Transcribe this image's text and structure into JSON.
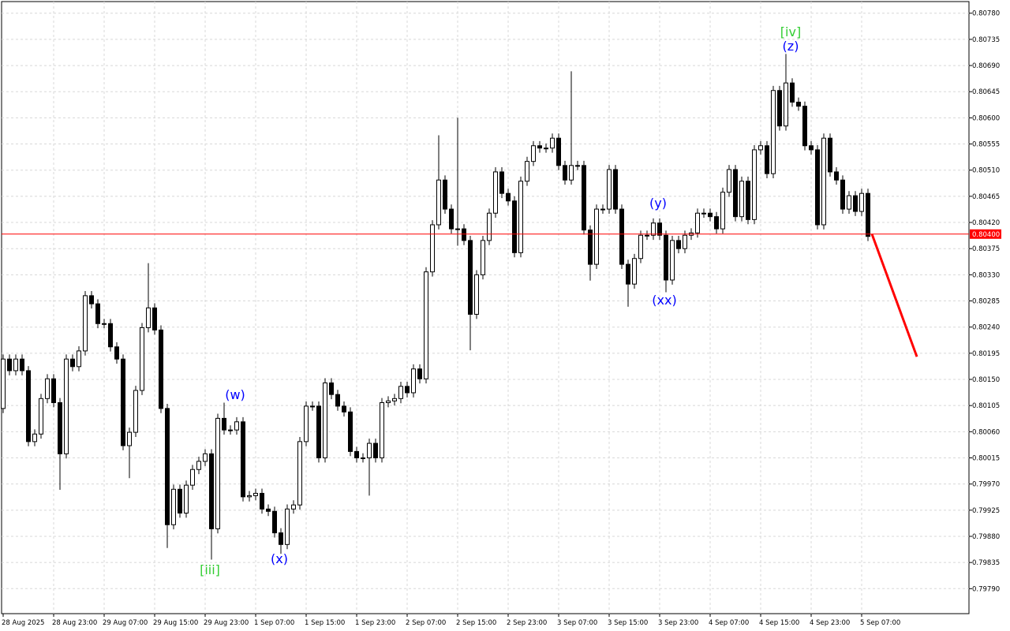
{
  "chart_data": {
    "type": "candlestick",
    "categories": [
      "28 Aug 2025",
      null,
      null,
      null,
      null,
      null,
      null,
      null,
      "28 Aug 23:00",
      null,
      null,
      null,
      null,
      null,
      null,
      null,
      "29 Aug 07:00",
      null,
      null,
      null,
      null,
      null,
      null,
      null,
      "29 Aug 15:00",
      null,
      null,
      null,
      null,
      null,
      null,
      null,
      "29 Aug 23:00",
      null,
      null,
      null,
      null,
      null,
      null,
      null,
      "1 Sep 07:00",
      null,
      null,
      null,
      null,
      null,
      null,
      null,
      "1 Sep 15:00",
      null,
      null,
      null,
      null,
      null,
      null,
      null,
      "1 Sep 23:00",
      null,
      null,
      null,
      null,
      null,
      null,
      null,
      "2 Sep 07:00",
      null,
      null,
      null,
      null,
      null,
      null,
      null,
      "2 Sep 15:00",
      null,
      null,
      null,
      null,
      null,
      null,
      null,
      "2 Sep 23:00",
      null,
      null,
      null,
      null,
      null,
      null,
      null,
      "3 Sep 07:00",
      null,
      null,
      null,
      null,
      null,
      null,
      null,
      "3 Sep 15:00",
      null,
      null,
      null,
      null,
      null,
      null,
      null,
      "3 Sep 23:00",
      null,
      null,
      null,
      null,
      null,
      null,
      null,
      "4 Sep 07:00",
      null,
      null,
      null,
      null,
      null,
      null,
      null,
      "4 Sep 15:00",
      null,
      null,
      null,
      null,
      null,
      null,
      null,
      "4 Sep 23:00",
      null,
      null,
      null,
      null,
      null,
      null,
      null,
      "5 Sep 07:00",
      null
    ],
    "open": [
      0.801,
      0.80185,
      0.80165,
      0.80185,
      0.80165,
      0.80043,
      0.80056,
      0.80117,
      0.80151,
      0.8011,
      0.80022,
      0.80185,
      0.80172,
      0.80199,
      0.80294,
      0.8028,
      0.80246,
      0.80246,
      0.80206,
      0.80185,
      0.80036,
      0.80059,
      0.80131,
      0.80239,
      0.80273,
      0.80235,
      0.801,
      0.799,
      0.79961,
      0.7992,
      0.79968,
      0.79995,
      0.80009,
      0.80022,
      0.79893,
      0.80083,
      0.80063,
      0.80063,
      0.80077,
      0.79948,
      0.7995,
      0.79954,
      0.79927,
      0.79923,
      0.79886,
      0.79866,
      0.79927,
      0.79934,
      0.80043,
      0.80104,
      0.80104,
      0.80015,
      0.80144,
      0.80124,
      0.80104,
      0.80094,
      0.80026,
      0.80015,
      0.80015,
      0.8004,
      0.80015,
      0.8011,
      0.80113,
      0.80117,
      0.80138,
      0.80127,
      0.80168,
      0.80151,
      0.80335,
      0.80416,
      0.80493,
      0.80443,
      0.80409,
      0.80409,
      0.80389,
      0.80262,
      0.8033,
      0.80389,
      0.80436,
      0.80507,
      0.8047,
      0.80457,
      0.80368,
      0.80491,
      0.80525,
      0.80552,
      0.80548,
      0.80548,
      0.80565,
      0.80518,
      0.80493,
      0.80518,
      0.80518,
      0.80407,
      0.80348,
      0.80443,
      0.80443,
      0.80511,
      0.80443,
      0.80348,
      0.80314,
      0.80358,
      0.80398,
      0.80398,
      0.80419,
      0.80398,
      0.80321,
      0.80389,
      0.80375,
      0.80398,
      0.80402,
      0.80436,
      0.80436,
      0.8043,
      0.80409,
      0.80472,
      0.80511,
      0.8043,
      0.80491,
      0.80425,
      0.80545,
      0.80552,
      0.80504,
      0.80647,
      0.80586,
      0.8066,
      0.80627,
      0.8062,
      0.80552,
      0.80545,
      0.80416,
      0.80565,
      0.80507,
      0.80493,
      0.80443,
      0.80466,
      0.80439,
      0.8047
    ],
    "high": [
      0.80193,
      0.80193,
      0.80193,
      0.80193,
      0.80173,
      0.80064,
      0.80125,
      0.80159,
      0.80159,
      0.80118,
      0.80193,
      0.80193,
      0.80207,
      0.80302,
      0.80302,
      0.80288,
      0.80254,
      0.80254,
      0.80214,
      0.80193,
      0.80067,
      0.80139,
      0.80247,
      0.8035,
      0.80281,
      0.80243,
      0.80108,
      0.79969,
      0.79969,
      0.79976,
      0.80003,
      0.80017,
      0.8003,
      0.8003,
      0.80091,
      0.8011,
      0.80071,
      0.80085,
      0.80085,
      0.79958,
      0.79962,
      0.79962,
      0.79935,
      0.79931,
      0.79894,
      0.79935,
      0.79942,
      0.80051,
      0.80112,
      0.80112,
      0.80112,
      0.80152,
      0.80152,
      0.80132,
      0.80112,
      0.80102,
      0.80034,
      0.80023,
      0.80048,
      0.80048,
      0.80118,
      0.80121,
      0.80125,
      0.80146,
      0.80146,
      0.80176,
      0.80176,
      0.80343,
      0.80424,
      0.8057,
      0.80501,
      0.80451,
      0.806,
      0.80417,
      0.80397,
      0.80338,
      0.80397,
      0.80444,
      0.80515,
      0.80515,
      0.80478,
      0.80465,
      0.80499,
      0.80533,
      0.8056,
      0.8056,
      0.80556,
      0.80573,
      0.80573,
      0.80526,
      0.8068,
      0.80526,
      0.80526,
      0.80415,
      0.80451,
      0.80451,
      0.80519,
      0.80519,
      0.80451,
      0.80356,
      0.80366,
      0.80406,
      0.80406,
      0.80427,
      0.80427,
      0.80406,
      0.80397,
      0.80397,
      0.80406,
      0.8041,
      0.80444,
      0.80444,
      0.80444,
      0.80438,
      0.8048,
      0.80519,
      0.80519,
      0.80499,
      0.80499,
      0.80553,
      0.8056,
      0.8056,
      0.80655,
      0.80655,
      0.8071,
      0.80668,
      0.80635,
      0.80628,
      0.8056,
      0.80553,
      0.80573,
      0.80573,
      0.80515,
      0.80501,
      0.80474,
      0.80474,
      0.80478,
      0.80478
    ],
    "low": [
      0.80092,
      0.80157,
      0.80157,
      0.80157,
      0.80035,
      0.80035,
      0.80048,
      0.80109,
      0.80102,
      0.7996,
      0.80014,
      0.80164,
      0.80164,
      0.80191,
      0.80272,
      0.80238,
      0.80238,
      0.80198,
      0.80177,
      0.80028,
      0.7998,
      0.80051,
      0.80123,
      0.80231,
      0.80227,
      0.80092,
      0.7986,
      0.79892,
      0.79912,
      0.79912,
      0.7996,
      0.79987,
      0.80001,
      0.7984,
      0.79885,
      0.80055,
      0.80055,
      0.80055,
      0.7994,
      0.7994,
      0.79942,
      0.79919,
      0.79915,
      0.79878,
      0.7985,
      0.79858,
      0.79919,
      0.79926,
      0.80035,
      0.80096,
      0.80007,
      0.80007,
      0.80116,
      0.80096,
      0.80086,
      0.80018,
      0.80007,
      0.80007,
      0.7995,
      0.80007,
      0.80007,
      0.80102,
      0.80105,
      0.80109,
      0.80119,
      0.80119,
      0.80143,
      0.80143,
      0.80327,
      0.80408,
      0.80435,
      0.80401,
      0.8038,
      0.80381,
      0.802,
      0.80254,
      0.80322,
      0.80381,
      0.80428,
      0.80462,
      0.80449,
      0.8036,
      0.8036,
      0.80483,
      0.80517,
      0.8054,
      0.8054,
      0.8054,
      0.8051,
      0.80485,
      0.80485,
      0.8051,
      0.80399,
      0.8032,
      0.8034,
      0.80435,
      0.80435,
      0.80435,
      0.8034,
      0.80275,
      0.80306,
      0.8035,
      0.8039,
      0.8039,
      0.8039,
      0.803,
      0.80313,
      0.80367,
      0.80367,
      0.8039,
      0.80394,
      0.80428,
      0.80422,
      0.80401,
      0.80401,
      0.80464,
      0.80422,
      0.80422,
      0.80417,
      0.80417,
      0.80537,
      0.80496,
      0.80496,
      0.80578,
      0.80578,
      0.80619,
      0.80612,
      0.80544,
      0.80537,
      0.80408,
      0.80408,
      0.80499,
      0.80485,
      0.80435,
      0.80435,
      0.80431,
      0.80431,
      0.80388
    ],
    "close": [
      0.80185,
      0.80165,
      0.80185,
      0.80165,
      0.80043,
      0.80056,
      0.80117,
      0.80151,
      0.8011,
      0.80022,
      0.80185,
      0.80172,
      0.80199,
      0.80294,
      0.8028,
      0.80246,
      0.80246,
      0.80206,
      0.80185,
      0.80036,
      0.80059,
      0.80131,
      0.80239,
      0.80273,
      0.80235,
      0.801,
      0.799,
      0.79961,
      0.7992,
      0.79968,
      0.79995,
      0.80009,
      0.80022,
      0.79893,
      0.80083,
      0.80063,
      0.80063,
      0.80077,
      0.79948,
      0.7995,
      0.79954,
      0.79927,
      0.79923,
      0.79886,
      0.79866,
      0.79927,
      0.79934,
      0.80043,
      0.80104,
      0.80104,
      0.80015,
      0.80144,
      0.80124,
      0.80104,
      0.80094,
      0.80026,
      0.80015,
      0.80015,
      0.8004,
      0.80015,
      0.8011,
      0.80113,
      0.80117,
      0.80138,
      0.80127,
      0.80168,
      0.80151,
      0.80335,
      0.80416,
      0.80493,
      0.80443,
      0.80409,
      0.80409,
      0.80389,
      0.80262,
      0.8033,
      0.80389,
      0.80436,
      0.80507,
      0.8047,
      0.80457,
      0.80368,
      0.80491,
      0.80525,
      0.80552,
      0.80548,
      0.80548,
      0.80565,
      0.80518,
      0.80493,
      0.80518,
      0.80518,
      0.80407,
      0.80348,
      0.80443,
      0.80443,
      0.80511,
      0.80443,
      0.80348,
      0.80314,
      0.80358,
      0.80398,
      0.80398,
      0.80419,
      0.80398,
      0.80321,
      0.80389,
      0.80375,
      0.80398,
      0.80402,
      0.80436,
      0.80436,
      0.8043,
      0.80409,
      0.80472,
      0.80511,
      0.8043,
      0.80491,
      0.80425,
      0.80545,
      0.80552,
      0.80504,
      0.80647,
      0.80586,
      0.8066,
      0.80627,
      0.8062,
      0.80552,
      0.80545,
      0.80416,
      0.80565,
      0.80507,
      0.80493,
      0.80443,
      0.80466,
      0.80439,
      0.8047,
      0.80396
    ],
    "up_color": "#ffffff",
    "down_color": "#000000",
    "ylim": [
      0.79747,
      0.808
    ],
    "yticks": [
      {
        "value": 0.8078,
        "label": "0.80780"
      },
      0.80735,
      {
        "value": 0.8069,
        "label": "0.80690"
      },
      0.80645,
      {
        "value": 0.806,
        "label": "0.80600"
      },
      0.80555,
      {
        "value": 0.8051,
        "label": "0.80510"
      },
      0.80465,
      {
        "value": 0.8042,
        "label": "0.80420"
      },
      0.80375,
      {
        "value": 0.8033,
        "label": "0.80330"
      },
      0.80285,
      {
        "value": 0.8024,
        "label": "0.80240"
      },
      0.80195,
      {
        "value": 0.8015,
        "label": "0.80150"
      },
      0.80105,
      {
        "value": 0.8006,
        "label": "0.80060"
      },
      0.80015,
      {
        "value": 0.7997,
        "label": "0.79970"
      },
      0.79925,
      {
        "value": 0.7988,
        "label": "0.79880"
      },
      0.79835,
      {
        "value": 0.7979,
        "label": "0.79790"
      }
    ],
    "grid": true,
    "price_line": {
      "value": 0.804,
      "label": "0.80400",
      "color": "#ff0000"
    },
    "forecast": {
      "color": "#ff0000",
      "values": [
        0.804,
        0.80189
      ]
    },
    "annotations": [
      {
        "text": "[iii]",
        "color": "#32cd32"
      },
      {
        "text": "(w)",
        "color": "#0000ff"
      },
      {
        "text": "(x)",
        "color": "#0000ff"
      },
      {
        "text": "(y)",
        "color": "#0000ff"
      },
      {
        "text": "(xx)",
        "color": "#0000ff"
      },
      {
        "text": "[iv]",
        "color": "#32cd32"
      },
      {
        "text": "(z)",
        "color": "#0000ff"
      }
    ]
  }
}
